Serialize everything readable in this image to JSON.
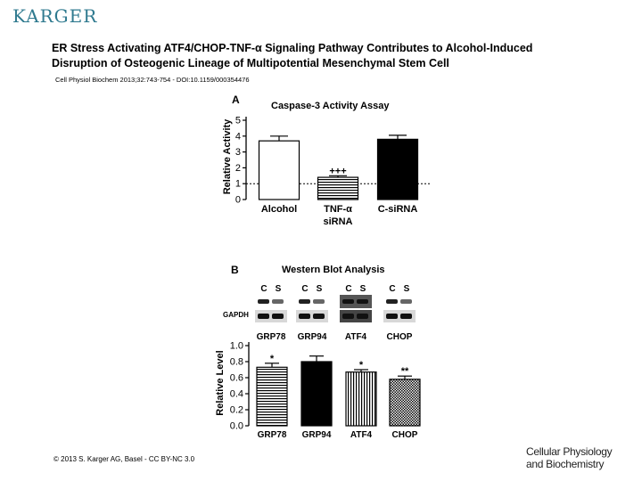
{
  "publisher": "KARGER",
  "title": "ER Stress Activating ATF4/CHOP-TNF-α Signaling Pathway Contributes to Alcohol-Induced Disruption of Osteogenic Lineage of Multipotential Mesenchymal Stem Cell",
  "citation": "Cell Physiol Biochem 2013;32:743-754 - DOI:10.1159/000354476",
  "copyright": "© 2013 S. Karger AG, Basel - CC BY-NC 3.0",
  "journal_line1": "Cellular Physiology",
  "journal_line2": "and Biochemistry",
  "panel_a": {
    "letter": "A",
    "chart_data": {
      "type": "bar",
      "title": "Caspase-3 Activity Assay",
      "ylabel": "Relative Activity",
      "categories": [
        "Alcohol",
        "TNF-α siRNA",
        "C-siRNA"
      ],
      "category_lines": [
        [
          "Alcohol"
        ],
        [
          "TNF-α",
          "siRNA"
        ],
        [
          "C-siRNA"
        ]
      ],
      "values": [
        3.7,
        1.4,
        3.8
      ],
      "errors": [
        0.3,
        0.1,
        0.25
      ],
      "patterns": [
        "white",
        "horizontal",
        "black"
      ],
      "annotations": [
        "",
        "+++",
        ""
      ],
      "reference_line": 1,
      "ylim": [
        0,
        5
      ],
      "yticks": [
        0,
        1,
        2,
        3,
        4,
        5
      ]
    }
  },
  "panel_b": {
    "letter": "B",
    "blot_title": "Western Blot Analysis",
    "lane_labels": [
      "C",
      "S"
    ],
    "gapdh_label": "GAPDH",
    "blot_targets": [
      "GRP78",
      "GRP94",
      "ATF4",
      "CHOP"
    ],
    "chart_data": {
      "type": "bar",
      "ylabel": "Relative Level",
      "categories": [
        "GRP78",
        "GRP94",
        "ATF4",
        "CHOP"
      ],
      "values": [
        0.73,
        0.8,
        0.67,
        0.58
      ],
      "errors": [
        0.05,
        0.07,
        0.03,
        0.04
      ],
      "patterns": [
        "horizontal",
        "black",
        "vertical",
        "checker"
      ],
      "annotations": [
        "*",
        "",
        "*",
        "**"
      ],
      "ylim": [
        0,
        1.0
      ],
      "yticks": [
        0.0,
        0.2,
        0.4,
        0.6,
        0.8,
        1.0
      ]
    }
  }
}
